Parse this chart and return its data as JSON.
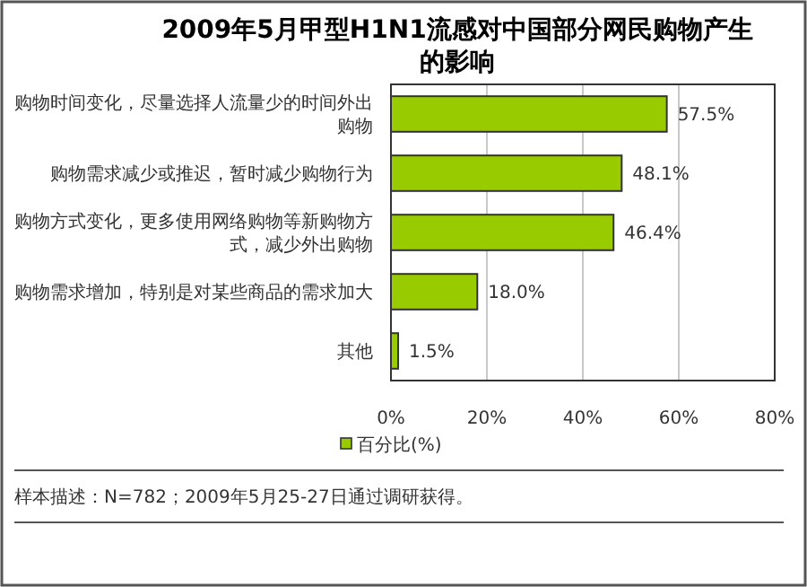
{
  "chart_data": {
    "type": "bar",
    "orientation": "horizontal",
    "title": "2009年5月甲型H1N1流感对中国部分网民购物产生的影响",
    "categories": [
      "购物时间变化，尽量选择人流量少的时间外出购物",
      "购物需求减少或推迟，暂时减少购物行为",
      "购物方式变化，更多使用网络购物等新购物方式，减少外出购物",
      "购物需求增加，特别是对某些商品的需求加大",
      "其他"
    ],
    "series": [
      {
        "name": "百分比(%)",
        "color": "#99cc00",
        "values": [
          57.5,
          48.1,
          46.4,
          18.0,
          1.5
        ],
        "value_labels": [
          "57.5%",
          "48.1%",
          "46.4%",
          "18.0%",
          "1.5%"
        ]
      }
    ],
    "xlim": [
      0,
      80
    ],
    "xticks": [
      {
        "value": 0,
        "label": "0%"
      },
      {
        "value": 20,
        "label": "20%"
      },
      {
        "value": 40,
        "label": "40%"
      },
      {
        "value": 60,
        "label": "60%"
      },
      {
        "value": 80,
        "label": "80%"
      }
    ],
    "grid": "x",
    "legend": "bottom",
    "annotations": [
      "样本描述：N=782；2009年5月25-27日通过调研获得。"
    ]
  }
}
